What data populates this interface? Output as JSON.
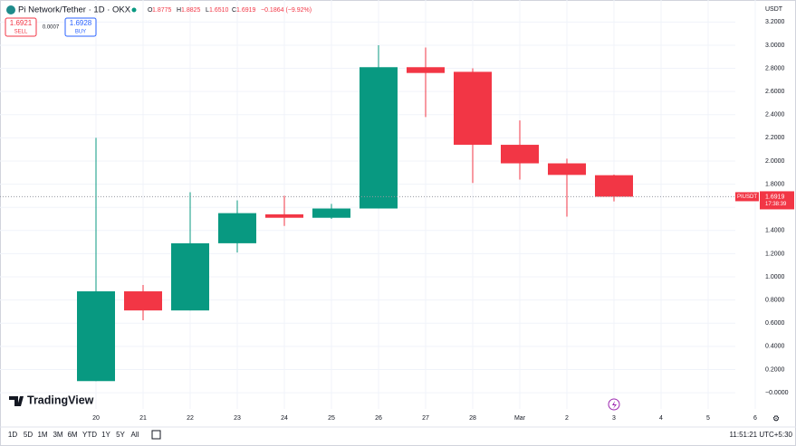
{
  "header": {
    "symbol": "Pi Network/Tether · 1D · OKX",
    "ohlc_labels": [
      "O",
      "H",
      "L",
      "C"
    ],
    "ohlc_values": [
      "1.8775",
      "1.8825",
      "1.6510",
      "1.6919"
    ],
    "change": "−0.1864 (−9.92%)",
    "sell": {
      "price": "1.6921",
      "label": "SELL"
    },
    "spread": "0.0007",
    "buy": {
      "price": "1.6928",
      "label": "BUY"
    }
  },
  "chart_data": {
    "type": "candlestick",
    "currency": "USDT",
    "categories": [
      "20",
      "21",
      "22",
      "23",
      "24",
      "25",
      "26",
      "27",
      "28",
      "Mar",
      "2",
      "3",
      "4",
      "5",
      "6"
    ],
    "open": [
      0.1,
      0.875,
      0.71,
      1.29,
      1.54,
      1.51,
      1.59,
      2.81,
      2.77,
      2.14,
      1.98,
      1.8775,
      null,
      null,
      null
    ],
    "high": [
      2.2,
      0.93,
      1.73,
      1.66,
      1.7,
      1.63,
      3.0,
      2.98,
      2.8,
      2.35,
      2.02,
      1.8825,
      null,
      null,
      null
    ],
    "low": [
      0.1,
      0.625,
      0.71,
      1.21,
      1.44,
      1.5,
      1.59,
      2.38,
      1.81,
      1.84,
      1.52,
      1.651,
      null,
      null,
      null
    ],
    "close": [
      0.875,
      0.71,
      1.29,
      1.55,
      1.51,
      1.59,
      2.81,
      2.76,
      2.14,
      1.98,
      1.88,
      1.6919,
      null,
      null,
      null
    ],
    "up_color": "#089981",
    "down_color": "#f23645",
    "ylim": [
      -0.14,
      3.39
    ],
    "yticks": [
      {
        "value": 0,
        "label": "−0.0000"
      },
      {
        "value": 0.2,
        "label": "0.2000"
      },
      {
        "value": 0.4,
        "label": "0.4000"
      },
      {
        "value": 0.6,
        "label": "0.6000"
      },
      {
        "value": 0.8,
        "label": "0.8000"
      },
      {
        "value": 1,
        "label": "1.0000"
      },
      {
        "value": 1.2,
        "label": "1.2000"
      },
      {
        "value": 1.4,
        "label": "1.4000"
      },
      {
        "value": 1.6,
        "label": "1.6000"
      },
      {
        "value": 1.8,
        "label": "1.8000"
      },
      {
        "value": 2,
        "label": "2.0000"
      },
      {
        "value": 2.2,
        "label": "2.2000"
      },
      {
        "value": 2.4,
        "label": "2.4000"
      },
      {
        "value": 2.6,
        "label": "2.6000"
      },
      {
        "value": 2.8,
        "label": "2.8000"
      },
      {
        "value": 3,
        "label": "3.0000"
      },
      {
        "value": 3.2,
        "label": "3.2000"
      }
    ],
    "grid": true,
    "symbol_tag": "PIUSDT",
    "countdown": "17:38:39"
  },
  "footer": {
    "brand": "TradingView",
    "ranges": [
      "1D",
      "5D",
      "1M",
      "3M",
      "6M",
      "YTD",
      "1Y",
      "5Y",
      "All"
    ],
    "clock": "11:51:21 UTC+5:30"
  }
}
